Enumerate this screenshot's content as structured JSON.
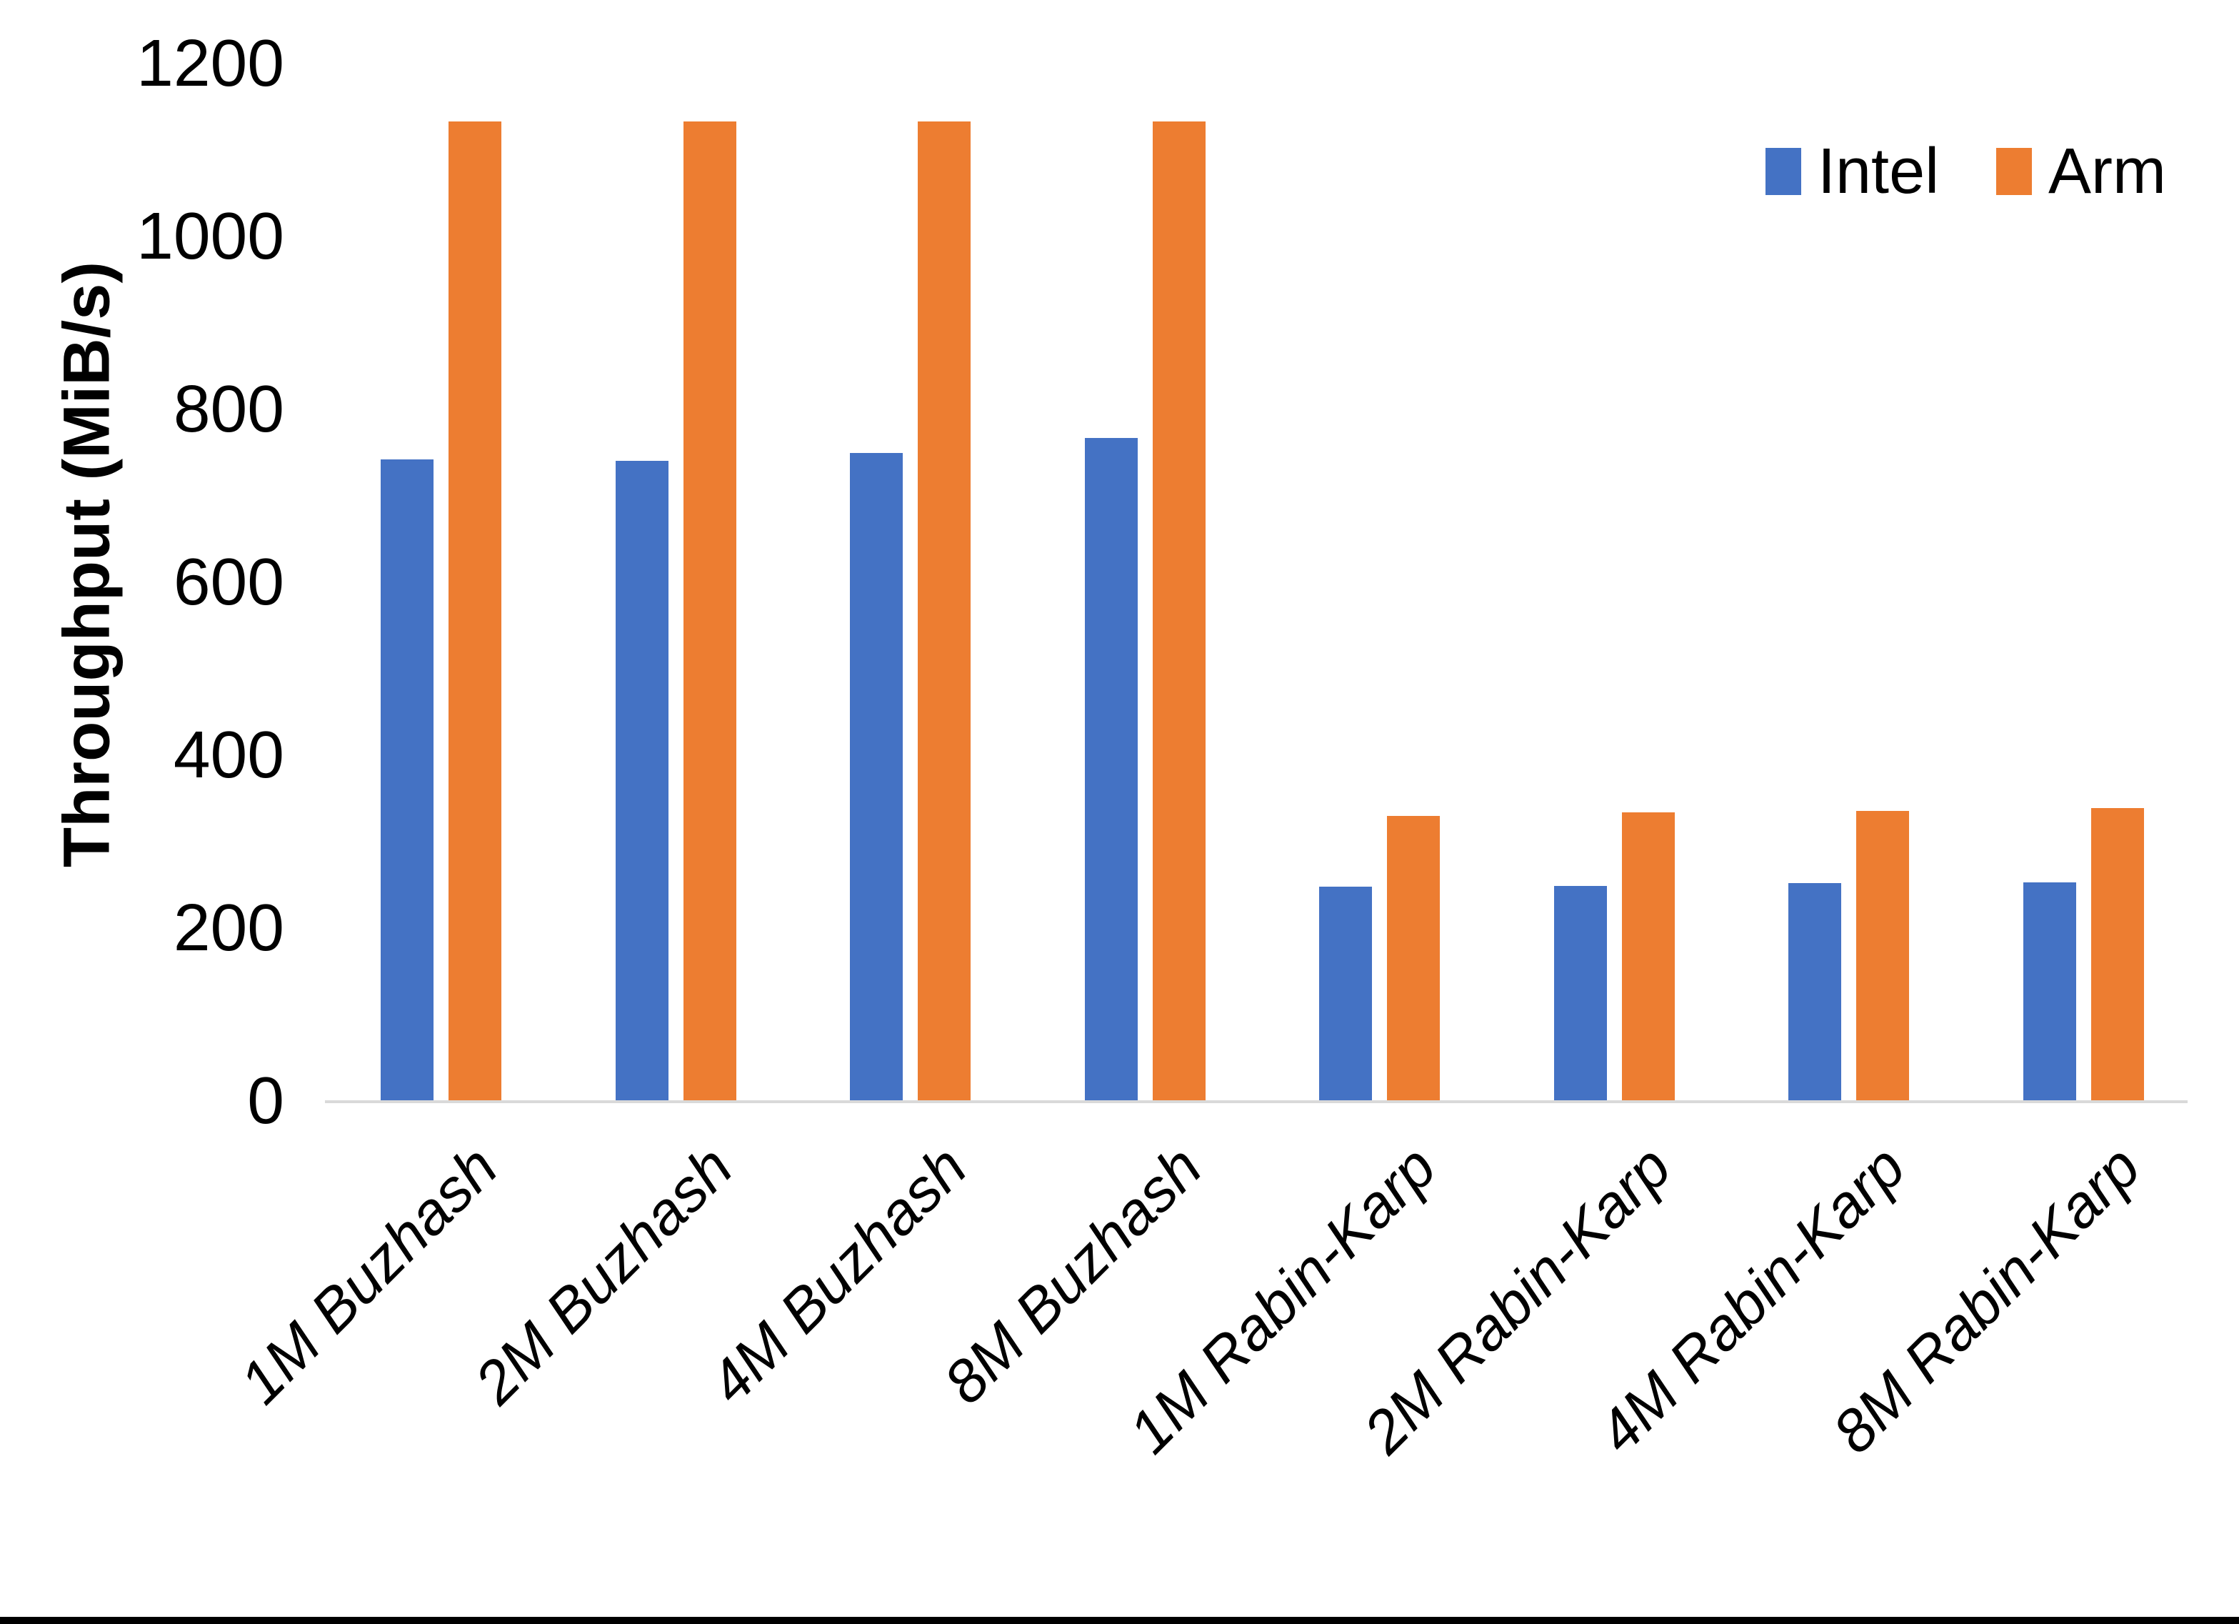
{
  "chart_data": {
    "type": "bar",
    "title": "",
    "xlabel": "",
    "ylabel": "Throughput (MiB/s)",
    "ylim": [
      0,
      1200
    ],
    "yticks": [
      0,
      200,
      400,
      600,
      800,
      1000,
      1200
    ],
    "grid": false,
    "legend_position": "top-right",
    "categories": [
      "1M Buzhash",
      "2M Buzhash",
      "4M Buzhash",
      "8M Buzhash",
      "1M Rabin-Karp",
      "2M Rabin-Karp",
      "4M Rabin-Karp",
      "8M Rabin-Karp"
    ],
    "series": [
      {
        "name": "Intel",
        "color": "#4472C4",
        "values": [
          741,
          740,
          749,
          766,
          247,
          248,
          251,
          252
        ]
      },
      {
        "name": "Arm",
        "color": "#ED7D31",
        "values": [
          1132,
          1132,
          1132,
          1132,
          329,
          333,
          335,
          338
        ]
      }
    ]
  },
  "legend": {
    "items": [
      {
        "label": "Intel",
        "color": "#4472C4"
      },
      {
        "label": "Arm",
        "color": "#ED7D31"
      }
    ]
  },
  "axis": {
    "y_title": "Throughput (MiB/s)",
    "y_tick_labels": [
      "0",
      "200",
      "400",
      "600",
      "800",
      "1000",
      "1200"
    ]
  },
  "colors": {
    "intel": "#4472C4",
    "arm": "#ED7D31",
    "axis_line": "#d9d9d9",
    "text": "#000000",
    "background": "#ffffff",
    "bottom_border": "#000000"
  }
}
